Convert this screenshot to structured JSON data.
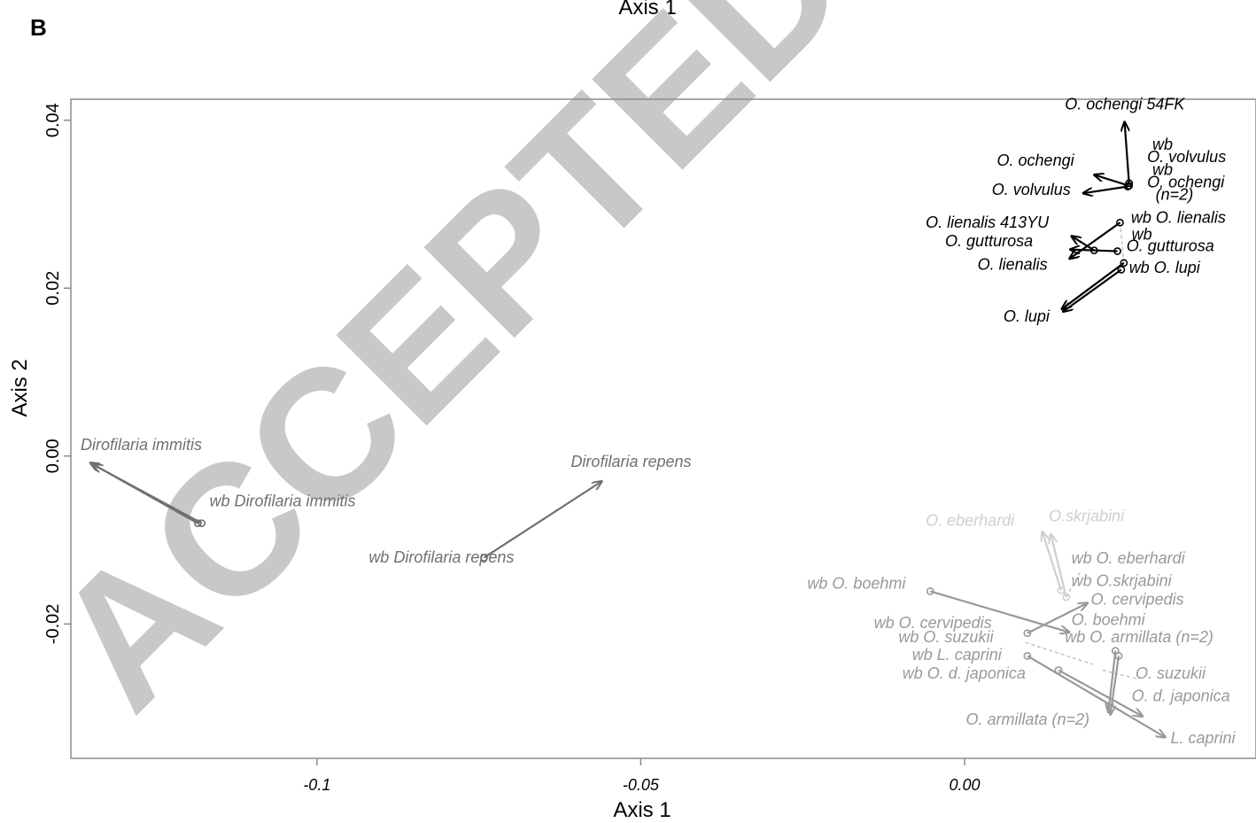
{
  "panel_label": "B",
  "top_residual_text": "Axis 1",
  "watermark": "ACCEPTED MAN",
  "chart_data": {
    "type": "scatter",
    "xlabel": "Axis 1",
    "ylabel": "Axis 2",
    "xlim": [
      -0.138,
      0.045
    ],
    "ylim": [
      -0.036,
      0.0425
    ],
    "x_ticks": [
      {
        "v": -0.1,
        "label": "-0.1"
      },
      {
        "v": -0.05,
        "label": "-0.05"
      },
      {
        "v": 0.0,
        "label": "0.00"
      }
    ],
    "y_ticks": [
      {
        "v": 0.04,
        "label": "0.04"
      },
      {
        "v": 0.02,
        "label": "0.02"
      },
      {
        "v": 0.0,
        "label": "0.00"
      },
      {
        "v": -0.02,
        "label": "-0.02"
      }
    ],
    "colors": {
      "group1": "#000000",
      "group2": "#707070",
      "group3": "#999999",
      "group4": "#cfcfcf",
      "dashed": "#c4c4c4"
    },
    "arrows": [
      {
        "group": "group1",
        "x0": 0.0254,
        "y0": 0.0325,
        "x1": 0.0247,
        "y1": 0.0398
      },
      {
        "group": "group1",
        "x0": 0.0254,
        "y0": 0.0322,
        "x1": 0.02,
        "y1": 0.0335
      },
      {
        "group": "group1",
        "x0": 0.0252,
        "y0": 0.0321,
        "x1": 0.0183,
        "y1": 0.0313
      },
      {
        "group": "group1",
        "x0": 0.02,
        "y0": 0.0245,
        "x1": 0.0165,
        "y1": 0.0262
      },
      {
        "group": "group1",
        "x0": 0.0236,
        "y0": 0.0244,
        "x1": 0.0163,
        "y1": 0.0246
      },
      {
        "group": "group1",
        "x0": 0.024,
        "y0": 0.0278,
        "x1": 0.0162,
        "y1": 0.0235
      },
      {
        "group": "group1",
        "x0": 0.0246,
        "y0": 0.023,
        "x1": 0.015,
        "y1": 0.0175
      },
      {
        "group": "group1",
        "x0": 0.0242,
        "y0": 0.0222,
        "x1": 0.0152,
        "y1": 0.0172
      },
      {
        "group": "group2",
        "x0": -0.1178,
        "y0": -0.008,
        "x1": -0.1346,
        "y1": -0.001
      },
      {
        "group": "group2",
        "x0": -0.1184,
        "y0": -0.008,
        "x1": -0.135,
        "y1": -0.0008
      },
      {
        "group": "group2",
        "x0": -0.0742,
        "y0": -0.0121,
        "x1": -0.056,
        "y1": -0.003
      },
      {
        "group": "group3",
        "x0": -0.0053,
        "y0": -0.0161,
        "x1": 0.0162,
        "y1": -0.021
      },
      {
        "group": "group3",
        "x0": 0.0097,
        "y0": -0.0211,
        "x1": 0.019,
        "y1": -0.0175
      },
      {
        "group": "group3",
        "x0": 0.0233,
        "y0": -0.0232,
        "x1": 0.0222,
        "y1": -0.0305
      },
      {
        "group": "group3",
        "x0": 0.0238,
        "y0": -0.0238,
        "x1": 0.0225,
        "y1": -0.0308
      },
      {
        "group": "group3",
        "x0": 0.0097,
        "y0": -0.0238,
        "x1": 0.031,
        "y1": -0.0335
      },
      {
        "group": "group3",
        "x0": 0.0145,
        "y0": -0.0255,
        "x1": 0.0275,
        "y1": -0.031
      },
      {
        "group": "group4",
        "x0": 0.0149,
        "y0": -0.016,
        "x1": 0.012,
        "y1": -0.009
      },
      {
        "group": "group4",
        "x0": 0.0157,
        "y0": -0.0168,
        "x1": 0.0133,
        "y1": -0.0093
      }
    ],
    "dashed_links": [
      {
        "x0": 0.024,
        "y0": 0.0278,
        "x1": 0.0246,
        "y1": 0.023
      },
      {
        "x0": 0.0236,
        "y0": 0.0244,
        "x1": 0.02,
        "y1": 0.0245
      },
      {
        "x0": 0.0157,
        "y0": -0.0168,
        "x1": 0.018,
        "y1": -0.0136
      },
      {
        "x0": 0.0094,
        "y0": -0.0222,
        "x1": 0.0198,
        "y1": -0.0248
      },
      {
        "x0": 0.0213,
        "y0": -0.0255,
        "x1": 0.0265,
        "y1": -0.0265
      }
    ],
    "labels": [
      {
        "group": "group1",
        "text": "O. ochengi 54FK",
        "x": 0.0155,
        "y": 0.0413,
        "anchor": "start"
      },
      {
        "group": "group1",
        "text": "wb",
        "x": 0.029,
        "y": 0.0365,
        "anchor": "start"
      },
      {
        "group": "group1",
        "text": "O. volvulus",
        "x": 0.0282,
        "y": 0.035,
        "anchor": "start"
      },
      {
        "group": "group1",
        "text": "wb",
        "x": 0.029,
        "y": 0.0335,
        "anchor": "start"
      },
      {
        "group": "group1",
        "text": "O. ochengi",
        "x": 0.0282,
        "y": 0.032,
        "anchor": "start"
      },
      {
        "group": "group1",
        "text": "(n=2)",
        "x": 0.0295,
        "y": 0.0305,
        "anchor": "start"
      },
      {
        "group": "group1",
        "text": "O. ochengi",
        "x": 0.005,
        "y": 0.0346,
        "anchor": "start"
      },
      {
        "group": "group1",
        "text": "O. volvulus",
        "x": 0.0042,
        "y": 0.0311,
        "anchor": "start"
      },
      {
        "group": "group1",
        "text": "wb O. lienalis",
        "x": 0.0257,
        "y": 0.0278,
        "anchor": "start"
      },
      {
        "group": "group1",
        "text": "O. lienalis 413YU",
        "x": -0.006,
        "y": 0.0272,
        "anchor": "start"
      },
      {
        "group": "group1",
        "text": "wb",
        "x": 0.0258,
        "y": 0.0258,
        "anchor": "start"
      },
      {
        "group": "group1",
        "text": "O. gutturosa",
        "x": -0.003,
        "y": 0.025,
        "anchor": "start"
      },
      {
        "group": "group1",
        "text": "O. gutturosa",
        "x": 0.025,
        "y": 0.0244,
        "anchor": "start"
      },
      {
        "group": "group1",
        "text": "O. lienalis",
        "x": 0.002,
        "y": 0.0222,
        "anchor": "start"
      },
      {
        "group": "group1",
        "text": "wb O. lupi",
        "x": 0.0254,
        "y": 0.0218,
        "anchor": "start"
      },
      {
        "group": "group1",
        "text": "O. lupi",
        "x": 0.006,
        "y": 0.016,
        "anchor": "start"
      },
      {
        "group": "group2",
        "text": "Dirofilaria immitis",
        "x": -0.1365,
        "y": 0.0007,
        "anchor": "start"
      },
      {
        "group": "group2",
        "text": "wb Dirofilaria immitis",
        "x": -0.1166,
        "y": -0.006,
        "anchor": "start"
      },
      {
        "group": "group2",
        "text": "Dirofilaria repens",
        "x": -0.0608,
        "y": -0.0013,
        "anchor": "start"
      },
      {
        "group": "group2",
        "text": "wb Dirofilaria repens",
        "x": -0.092,
        "y": -0.0127,
        "anchor": "start"
      },
      {
        "group": "group4",
        "text": "O. eberhardi",
        "x": -0.006,
        "y": -0.0083,
        "anchor": "start"
      },
      {
        "group": "group4",
        "text": "O.skrjabini",
        "x": 0.013,
        "y": -0.0078,
        "anchor": "start"
      },
      {
        "group": "group3",
        "text": "wb O. eberhardi",
        "x": 0.0165,
        "y": -0.0128,
        "anchor": "start"
      },
      {
        "group": "group3",
        "text": "wb O.skrjabini",
        "x": 0.0165,
        "y": -0.0155,
        "anchor": "start"
      },
      {
        "group": "group3",
        "text": "wb O. boehmi",
        "x": -0.0243,
        "y": -0.0158,
        "anchor": "start"
      },
      {
        "group": "group3",
        "text": "O. cervipedis",
        "x": 0.0195,
        "y": -0.0177,
        "anchor": "start"
      },
      {
        "group": "group3",
        "text": "wb O. cervipedis",
        "x": -0.014,
        "y": -0.0205,
        "anchor": "start"
      },
      {
        "group": "group3",
        "text": "O. boehmi",
        "x": 0.0165,
        "y": -0.0201,
        "anchor": "start"
      },
      {
        "group": "group3",
        "text": "wb O. suzukii",
        "x": -0.0102,
        "y": -0.0222,
        "anchor": "start"
      },
      {
        "group": "group3",
        "text": "wb O. armillata (n=2)",
        "x": 0.0155,
        "y": -0.0222,
        "anchor": "start"
      },
      {
        "group": "group3",
        "text": "wb L. caprini",
        "x": -0.0081,
        "y": -0.0243,
        "anchor": "start"
      },
      {
        "group": "group3",
        "text": "wb O. d. japonica",
        "x": -0.0096,
        "y": -0.0265,
        "anchor": "start"
      },
      {
        "group": "group3",
        "text": "O. suzukii",
        "x": 0.0264,
        "y": -0.0265,
        "anchor": "start"
      },
      {
        "group": "group3",
        "text": "O. d. japonica",
        "x": 0.0258,
        "y": -0.0292,
        "anchor": "start"
      },
      {
        "group": "group3",
        "text": "O. armillata (n=2)",
        "x": 0.0002,
        "y": -0.032,
        "anchor": "start"
      },
      {
        "group": "group3",
        "text": "L. caprini",
        "x": 0.0318,
        "y": -0.0342,
        "anchor": "start"
      }
    ]
  }
}
